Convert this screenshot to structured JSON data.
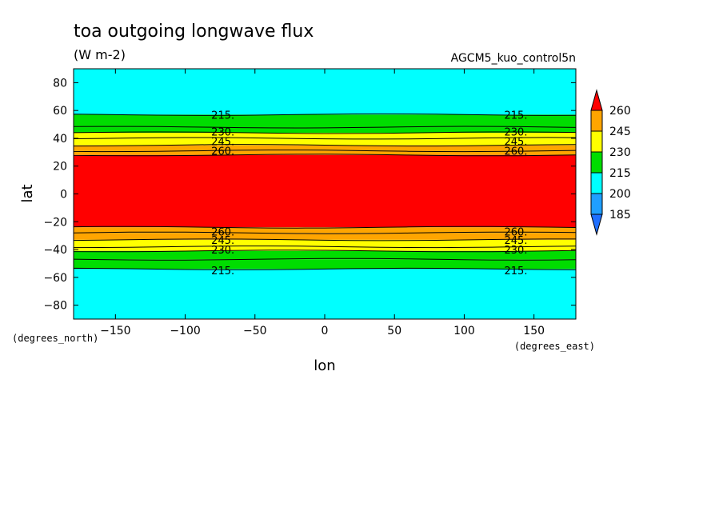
{
  "chart_data": {
    "type": "contour",
    "title": "toa outgoing longwave flux",
    "units": "(W m-2)",
    "experiment": "AGCM5_kuo_control5n",
    "xlabel": "lon",
    "ylabel": "lat",
    "x_unit_label": "(degrees_east)",
    "y_unit_label": "(degrees_north)",
    "xlim": [
      -180,
      180
    ],
    "ylim": [
      -90,
      90
    ],
    "x_ticks": [
      -150,
      -100,
      -50,
      0,
      50,
      100,
      150
    ],
    "x_tick_labels": [
      "−150",
      "−100",
      "−50",
      "0",
      "50",
      "100",
      "150"
    ],
    "y_ticks": [
      80,
      60,
      40,
      20,
      0,
      -20,
      -40,
      -60,
      -80
    ],
    "y_tick_labels": [
      "80",
      "60",
      "40",
      "20",
      "0",
      "−20",
      "−40",
      "−60",
      "−80"
    ],
    "colorbar_levels": [
      185,
      200,
      215,
      230,
      245,
      260
    ],
    "colorbar_colors": [
      "#1f6fff",
      "#1f9fff",
      "#00ffff",
      "#00dd00",
      "#ffff00",
      "#ffa500",
      "#ff0000"
    ],
    "bands": [
      {
        "lat_from": 57,
        "lat_to": 90,
        "color": "#00ffff"
      },
      {
        "lat_from": 48,
        "lat_to": 57,
        "color": "#00dd00"
      },
      {
        "lat_from": 44,
        "lat_to": 48,
        "color": "#00dd00"
      },
      {
        "lat_from": 40,
        "lat_to": 44,
        "color": "#ffff00"
      },
      {
        "lat_from": 35,
        "lat_to": 40,
        "color": "#ffff00"
      },
      {
        "lat_from": 31,
        "lat_to": 35,
        "color": "#ffa500"
      },
      {
        "lat_from": 28,
        "lat_to": 31,
        "color": "#ffa500"
      },
      {
        "lat_from": -24,
        "lat_to": 28,
        "color": "#ff0000"
      },
      {
        "lat_from": -28,
        "lat_to": -24,
        "color": "#ffa500"
      },
      {
        "lat_from": -33,
        "lat_to": -28,
        "color": "#ffa500"
      },
      {
        "lat_from": -38,
        "lat_to": -33,
        "color": "#ffff00"
      },
      {
        "lat_from": -41,
        "lat_to": -38,
        "color": "#ffff00"
      },
      {
        "lat_from": -47,
        "lat_to": -41,
        "color": "#00dd00"
      },
      {
        "lat_from": -54,
        "lat_to": -47,
        "color": "#00dd00"
      },
      {
        "lat_from": -90,
        "lat_to": -54,
        "color": "#00ffff"
      }
    ],
    "contour_lines": [
      57,
      48,
      44,
      40,
      35,
      31,
      28,
      -24,
      -28,
      -33,
      -38,
      -41,
      -47,
      -54
    ],
    "contour_labels": [
      {
        "text": "215.",
        "lat": 57
      },
      {
        "text": "230.",
        "lat": 45
      },
      {
        "text": "245.",
        "lat": 38
      },
      {
        "text": "260.",
        "lat": 31
      },
      {
        "text": "260.",
        "lat": -27
      },
      {
        "text": "245.",
        "lat": -33
      },
      {
        "text": "230.",
        "lat": -40
      },
      {
        "text": "215.",
        "lat": -55
      }
    ],
    "contour_label_lons": [
      -73,
      137
    ]
  }
}
